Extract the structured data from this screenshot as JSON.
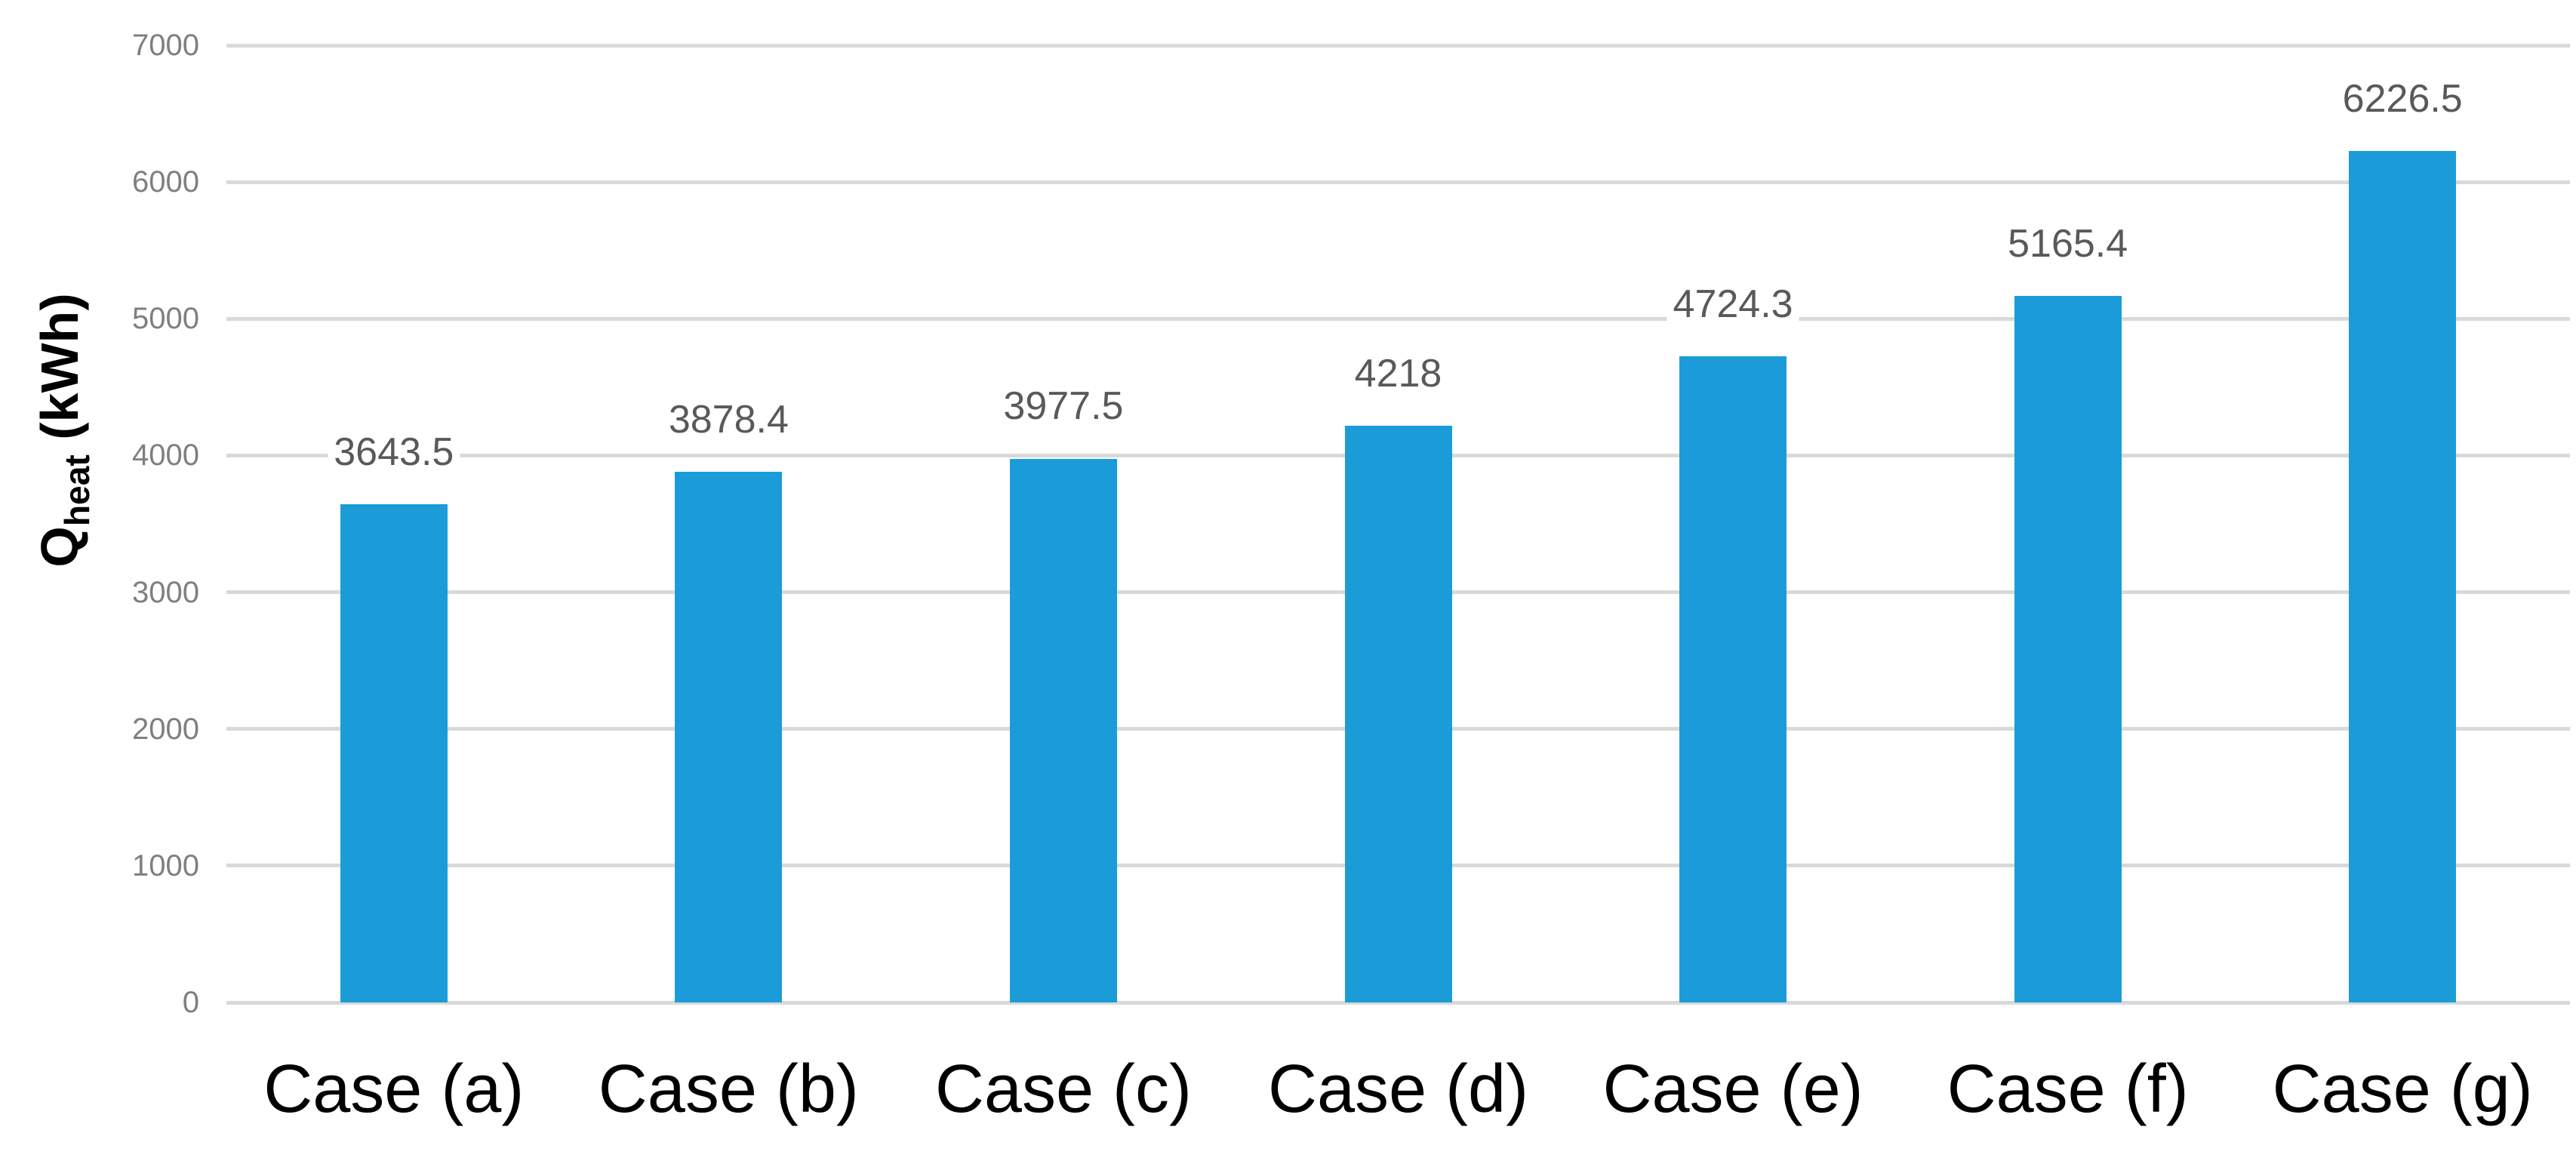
{
  "chart_data": {
    "type": "bar",
    "categories": [
      "Case (a)",
      "Case (b)",
      "Case (c)",
      "Case (d)",
      "Case (e)",
      "Case (f)",
      "Case (g)"
    ],
    "values": [
      3643.5,
      3878.4,
      3977.5,
      4218,
      4724.3,
      5165.4,
      6226.5
    ],
    "value_labels": [
      "3643.5",
      "3878.4",
      "3977.5",
      "4218",
      "4724.3",
      "5165.4",
      "6226.5"
    ],
    "title": "",
    "xlabel": "",
    "ylabel_main": "Q",
    "ylabel_sub": "heat",
    "ylabel_unit": " (kWh)",
    "yticks": [
      0,
      1000,
      2000,
      3000,
      4000,
      5000,
      6000,
      7000
    ],
    "ylim": [
      0,
      7000
    ],
    "grid": "horizontal",
    "legend_position": "none",
    "colors": {
      "bar": "#1B9CD9",
      "gridline": "#D9D9D9",
      "tick_label": "#7F7F7F",
      "data_label": "#595959",
      "category_label": "#000000"
    }
  }
}
